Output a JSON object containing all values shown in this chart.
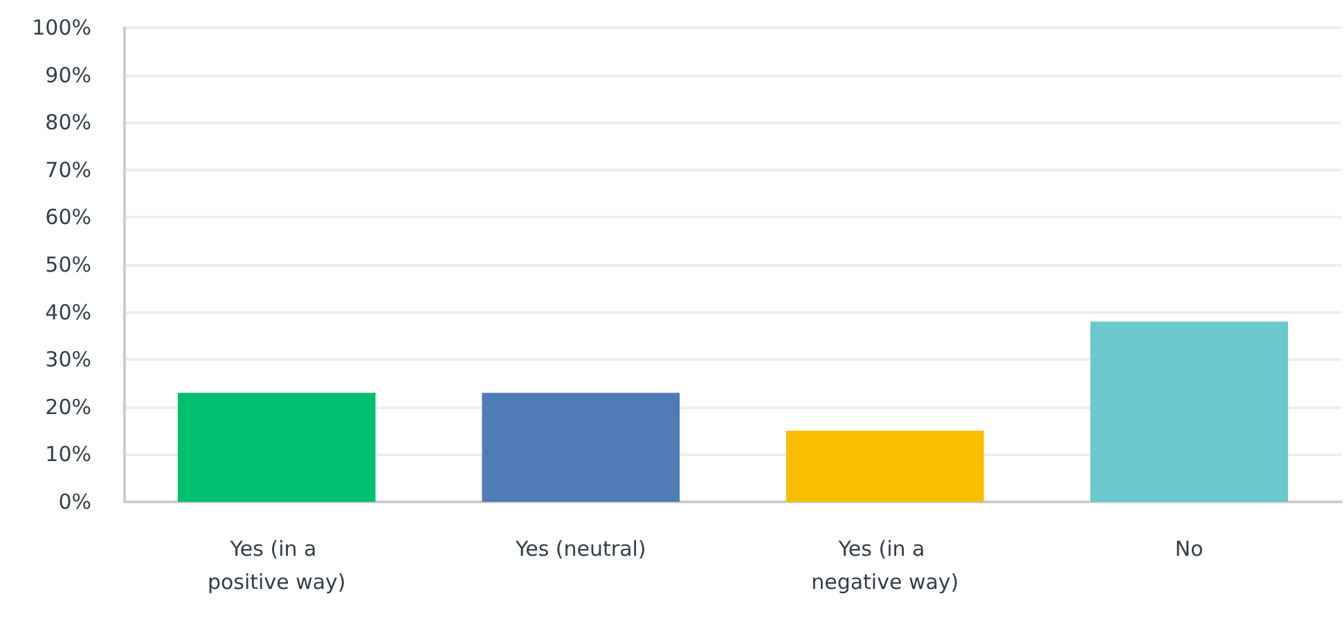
{
  "chart_data": {
    "type": "bar",
    "categories": [
      "Yes (in a positive way)",
      "Yes (neutral)",
      "Yes (in a negative way)",
      "No"
    ],
    "values": [
      23,
      23,
      15,
      38
    ],
    "colors": [
      "#00bf6f",
      "#507cb6",
      "#f9be00",
      "#6bc8cd"
    ],
    "ylim": [
      0,
      100
    ],
    "yticks": [
      {
        "value": 0,
        "label": "0%"
      },
      {
        "value": 10,
        "label": "10%"
      },
      {
        "value": 20,
        "label": "20%"
      },
      {
        "value": 30,
        "label": "30%"
      },
      {
        "value": 40,
        "label": "40%"
      },
      {
        "value": 50,
        "label": "50%"
      },
      {
        "value": 60,
        "label": "60%"
      },
      {
        "value": 70,
        "label": "70%"
      },
      {
        "value": 80,
        "label": "80%"
      },
      {
        "value": 90,
        "label": "90%"
      },
      {
        "value": 100,
        "label": "100%"
      }
    ],
    "grid": "y"
  }
}
